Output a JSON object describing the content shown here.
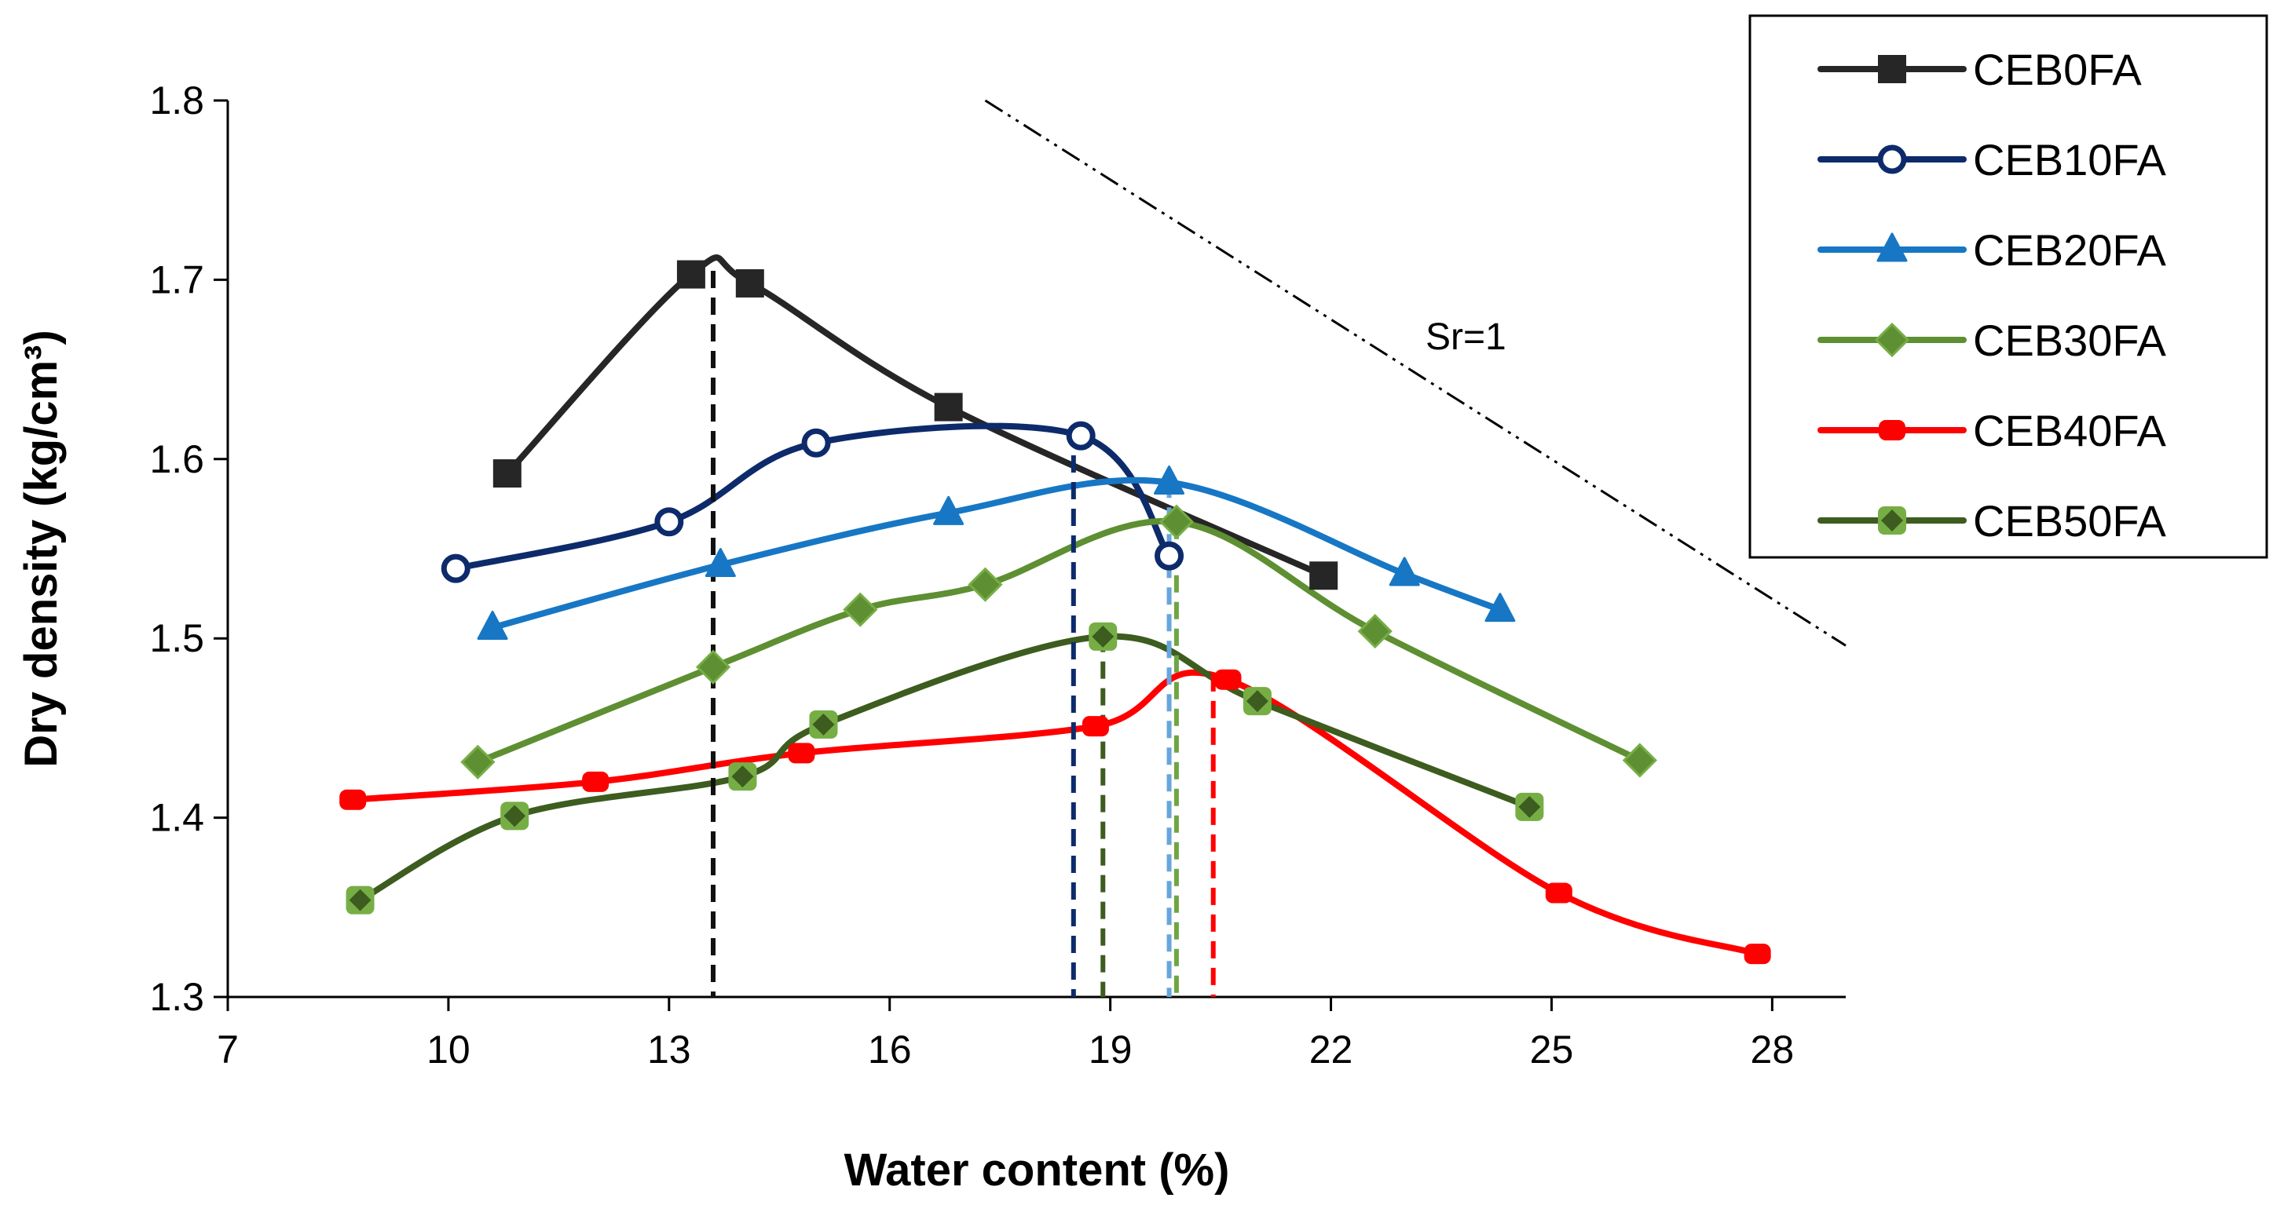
{
  "chart_data": {
    "type": "line",
    "title": "",
    "xlabel": "Water content (%)",
    "ylabel": "Dry density (kg/cm³)",
    "xlim": [
      7,
      29
    ],
    "ylim": [
      1.3,
      1.8
    ],
    "x_ticks": [
      "7",
      "10",
      "13",
      "16",
      "19",
      "22",
      "25",
      "28"
    ],
    "y_ticks": [
      "1.3",
      "1.4",
      "1.5",
      "1.6",
      "1.7",
      "1.8"
    ],
    "legend_position": "top-right outside",
    "series": [
      {
        "name": "CEB0FA",
        "color": "#262626",
        "marker": "square",
        "x": [
          10.8,
          13.3,
          14.1,
          16.8,
          21.9
        ],
        "y": [
          1.592,
          1.703,
          1.698,
          1.629,
          1.535
        ],
        "optimum_x": 13.6,
        "optimum_y": 1.705
      },
      {
        "name": "CEB10FA",
        "color": "#0D2B6B",
        "marker": "open-circle",
        "x": [
          10.1,
          13.0,
          15.0,
          18.6,
          19.8
        ],
        "y": [
          1.539,
          1.565,
          1.609,
          1.613,
          1.546
        ],
        "optimum_x": 18.5,
        "optimum_y": 1.617
      },
      {
        "name": "CEB20FA",
        "color": "#1777C4",
        "marker": "triangle",
        "x": [
          10.6,
          13.7,
          16.8,
          19.8,
          23.0,
          24.3
        ],
        "y": [
          1.506,
          1.541,
          1.57,
          1.587,
          1.536,
          1.516
        ],
        "optimum_x": 19.8,
        "optimum_y": 1.588
      },
      {
        "name": "CEB30FA",
        "color": "#5E8F32",
        "marker": "diamond",
        "x": [
          10.4,
          13.6,
          15.6,
          17.3,
          19.9,
          22.6,
          26.2
        ],
        "y": [
          1.431,
          1.484,
          1.516,
          1.53,
          1.565,
          1.504,
          1.432
        ],
        "optimum_x": 19.9,
        "optimum_y": 1.565
      },
      {
        "name": "CEB40FA",
        "color": "#FF0000",
        "marker": "rounded-square",
        "x": [
          8.7,
          12.0,
          14.8,
          18.8,
          20.6,
          25.1,
          27.8
        ],
        "y": [
          1.41,
          1.42,
          1.436,
          1.451,
          1.477,
          1.358,
          1.324
        ],
        "optimum_x": 20.4,
        "optimum_y": 1.48
      },
      {
        "name": "CEB50FA",
        "color": "#3D5C1F",
        "marker": "diamond-in-circle",
        "x": [
          8.8,
          10.9,
          14.0,
          15.1,
          18.9,
          21.0,
          24.7
        ],
        "y": [
          1.354,
          1.401,
          1.423,
          1.452,
          1.501,
          1.465,
          1.406
        ],
        "optimum_x": 18.9,
        "optimum_y": 1.502
      }
    ],
    "saturation_line": {
      "label": "Sr=1",
      "x": [
        17.3,
        29.0
      ],
      "y": [
        1.8,
        1.496
      ]
    }
  }
}
